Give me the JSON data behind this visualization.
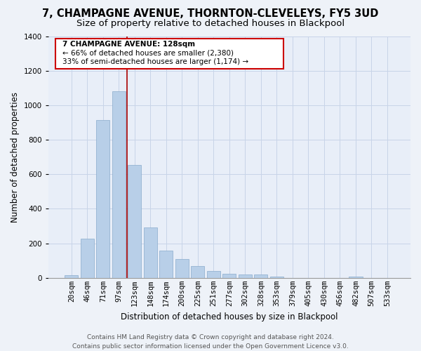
{
  "title": "7, CHAMPAGNE AVENUE, THORNTON-CLEVELEYS, FY5 3UD",
  "subtitle": "Size of property relative to detached houses in Blackpool",
  "xlabel": "Distribution of detached houses by size in Blackpool",
  "ylabel": "Number of detached properties",
  "bar_labels": [
    "20sqm",
    "46sqm",
    "71sqm",
    "97sqm",
    "123sqm",
    "148sqm",
    "174sqm",
    "200sqm",
    "225sqm",
    "251sqm",
    "277sqm",
    "302sqm",
    "328sqm",
    "353sqm",
    "379sqm",
    "405sqm",
    "430sqm",
    "456sqm",
    "482sqm",
    "507sqm",
    "533sqm"
  ],
  "bar_values": [
    15,
    228,
    916,
    1080,
    655,
    292,
    158,
    108,
    70,
    40,
    25,
    20,
    18,
    7,
    0,
    0,
    0,
    0,
    8,
    0,
    0
  ],
  "bar_color": "#b8cfe8",
  "vline_color": "#aa0000",
  "vline_index": 3.5,
  "annotation_line1": "7 CHAMPAGNE AVENUE: 128sqm",
  "annotation_line2": "← 66% of detached houses are smaller (2,380)",
  "annotation_line3": "33% of semi-detached houses are larger (1,174) →",
  "ylim": [
    0,
    1400
  ],
  "yticks": [
    0,
    200,
    400,
    600,
    800,
    1000,
    1200,
    1400
  ],
  "footer_line1": "Contains HM Land Registry data © Crown copyright and database right 2024.",
  "footer_line2": "Contains public sector information licensed under the Open Government Licence v3.0.",
  "background_color": "#eef2f8",
  "plot_bg_color": "#e8eef8",
  "title_fontsize": 10.5,
  "subtitle_fontsize": 9.5,
  "xlabel_fontsize": 8.5,
  "ylabel_fontsize": 8.5,
  "footer_fontsize": 6.5,
  "tick_fontsize": 7.5
}
